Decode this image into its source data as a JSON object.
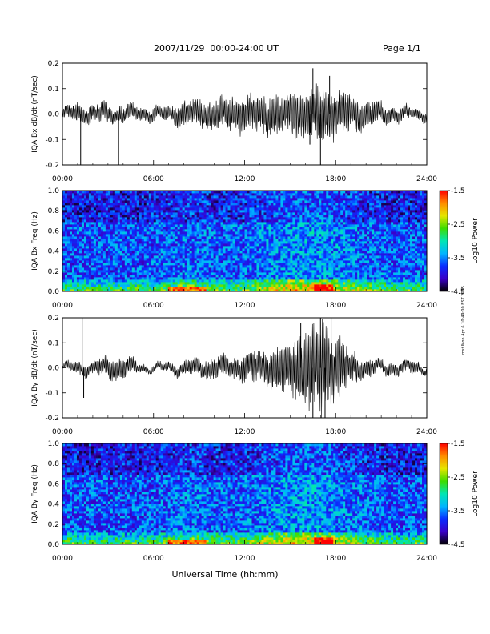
{
  "header": {
    "title": "2007/11/29  00:00-24:00 UT",
    "page": "Page 1/1"
  },
  "side_note": "mst Mon Apr 6 10:49:00 EST 2015",
  "xlabel": "Universal Time (hh:mm)",
  "xticks": [
    "00:00",
    "06:00",
    "12:00",
    "18:00",
    "24:00"
  ],
  "colorbar": {
    "label": "Log10 Power",
    "ticks": [
      "-1.5",
      "-2.5",
      "-3.5",
      "-4.5"
    ],
    "colors": [
      "#000000",
      "#3b00c8",
      "#0a2cff",
      "#00b4ff",
      "#00e6b4",
      "#3cdc00",
      "#e6e600",
      "#ff8c00",
      "#ff0000"
    ]
  },
  "chart_data": [
    {
      "type": "line",
      "ylabel": "IQA Bx dB/dt (nT/sec)",
      "xlim": [
        0,
        24
      ],
      "ylim": [
        -0.2,
        0.2
      ],
      "yticks": [
        "0.2",
        "0.1",
        "0.0",
        "-0.1",
        "-0.2"
      ],
      "envelope": {
        "hours": [
          0,
          1,
          2,
          3,
          4,
          5,
          6,
          7,
          8,
          9,
          10,
          11,
          12,
          13,
          14,
          15,
          16,
          17,
          18,
          19,
          20,
          21,
          22,
          23,
          24
        ],
        "amplitude": [
          0.015,
          0.03,
          0.025,
          0.03,
          0.025,
          0.02,
          0.02,
          0.02,
          0.04,
          0.04,
          0.045,
          0.05,
          0.05,
          0.055,
          0.06,
          0.065,
          0.07,
          0.08,
          0.07,
          0.05,
          0.04,
          0.03,
          0.025,
          0.02,
          0.015
        ],
        "spikes": [
          [
            1.2,
            -0.2
          ],
          [
            3.7,
            -0.2
          ],
          [
            16.5,
            0.18
          ],
          [
            17.0,
            -0.2
          ],
          [
            17.6,
            0.15
          ],
          [
            16.3,
            -0.12
          ]
        ]
      }
    },
    {
      "type": "heatmap",
      "ylabel": "IQA Bx Freq (Hz)",
      "xlim": [
        0,
        24
      ],
      "ylim": [
        0,
        1.0
      ],
      "yticks": [
        "1.0",
        "0.8",
        "0.6",
        "0.4",
        "0.2",
        "0.0"
      ],
      "zlim": [
        -4.5,
        -1.5
      ]
    },
    {
      "type": "line",
      "ylabel": "IQA By dB/dt (nT/sec)",
      "xlim": [
        0,
        24
      ],
      "ylim": [
        -0.2,
        0.2
      ],
      "yticks": [
        "0.2",
        "0.1",
        "0.0",
        "-0.1",
        "-0.2"
      ],
      "envelope": {
        "hours": [
          0,
          1,
          2,
          3,
          4,
          5,
          6,
          7,
          8,
          9,
          10,
          11,
          12,
          13,
          14,
          15,
          16,
          17,
          18,
          19,
          20,
          21,
          22,
          23,
          24
        ],
        "amplitude": [
          0.01,
          0.02,
          0.02,
          0.03,
          0.04,
          0.015,
          0.01,
          0.015,
          0.02,
          0.025,
          0.03,
          0.035,
          0.04,
          0.05,
          0.07,
          0.08,
          0.12,
          0.15,
          0.1,
          0.05,
          0.03,
          0.02,
          0.02,
          0.02,
          0.01
        ],
        "spikes": [
          [
            1.3,
            0.2
          ],
          [
            1.4,
            -0.12
          ],
          [
            16.5,
            -0.2
          ],
          [
            17.0,
            0.2
          ],
          [
            17.3,
            -0.2
          ],
          [
            17.7,
            0.2
          ],
          [
            15.7,
            0.18
          ]
        ]
      }
    },
    {
      "type": "heatmap",
      "ylabel": "IQA By Freq (Hz)",
      "xlim": [
        0,
        24
      ],
      "ylim": [
        0,
        1.0
      ],
      "yticks": [
        "1.0",
        "0.8",
        "0.6",
        "0.4",
        "0.2",
        "0.0"
      ],
      "zlim": [
        -4.5,
        -1.5
      ]
    }
  ]
}
